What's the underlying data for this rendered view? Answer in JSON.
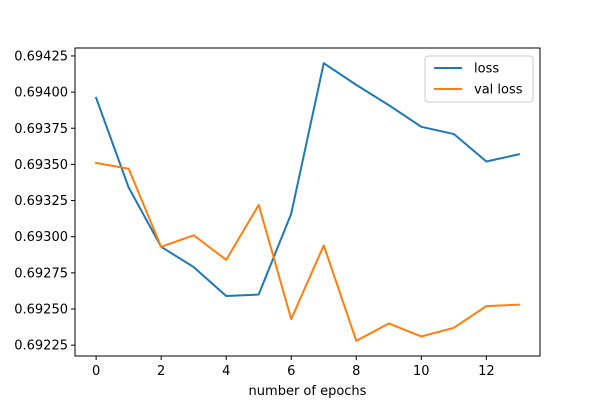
{
  "chart_data": {
    "type": "line",
    "title": "",
    "xlabel": "number of epochs",
    "ylabel": "",
    "xlim": [
      -0.65,
      13.65
    ],
    "ylim": [
      0.692175,
      0.694305
    ],
    "grid": false,
    "legend_placement": "top-right",
    "x_ticks": [
      0,
      2,
      4,
      6,
      8,
      10,
      12
    ],
    "x_tick_labels": [
      "0",
      "2",
      "4",
      "6",
      "8",
      "10",
      "12"
    ],
    "y_ticks": [
      0.69225,
      0.6925,
      0.69275,
      0.693,
      0.69325,
      0.6935,
      0.69375,
      0.694,
      0.69425
    ],
    "y_tick_labels": [
      "0.69225",
      "0.69250",
      "0.69275",
      "0.69300",
      "0.69325",
      "0.69350",
      "0.69375",
      "0.69400",
      "0.69425"
    ],
    "x": [
      0,
      1,
      2,
      3,
      4,
      5,
      6,
      7,
      8,
      9,
      10,
      11,
      12,
      13
    ],
    "series": [
      {
        "name": "loss",
        "color": "#1f77b4",
        "values": [
          0.69396,
          0.69334,
          0.69293,
          0.69279,
          0.69259,
          0.6926,
          0.69316,
          0.6942,
          0.69405,
          0.69391,
          0.69376,
          0.69371,
          0.69352,
          0.69357
        ]
      },
      {
        "name": "val loss",
        "color": "#ff7f0e",
        "values": [
          0.69351,
          0.69347,
          0.69293,
          0.69301,
          0.69284,
          0.69322,
          0.69243,
          0.69294,
          0.69228,
          0.6924,
          0.69231,
          0.69237,
          0.69252,
          0.69253
        ]
      }
    ]
  }
}
